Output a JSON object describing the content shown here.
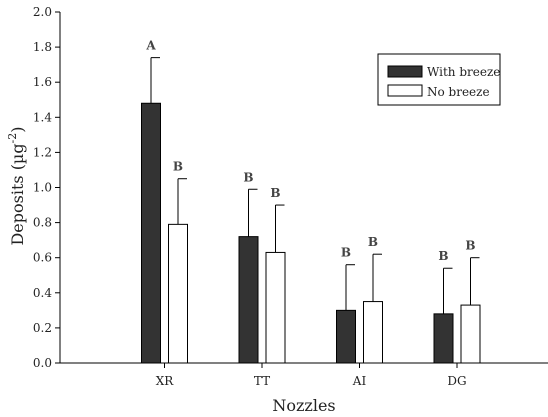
{
  "chart_data": {
    "type": "bar",
    "xlabel": "Nozzles",
    "ylabel": "Deposits (µg",
    "ylabel_sup": "-2",
    "ylabel_close": ")",
    "ylim": [
      0,
      2.0
    ],
    "yticks": [
      "0.0",
      "0.2",
      "0.4",
      "0.6",
      "0.8",
      "1.0",
      "1.2",
      "1.4",
      "1.6",
      "1.8",
      "2.0"
    ],
    "categories": [
      "XR",
      "TT",
      "AI",
      "DG"
    ],
    "error_bars": "upper",
    "legend_position": "top-right",
    "series": [
      {
        "name": "With breeze",
        "color": "#333333",
        "values": [
          1.48,
          0.72,
          0.3,
          0.28
        ],
        "errors": [
          0.26,
          0.27,
          0.26,
          0.26
        ],
        "letters": [
          "A",
          "B",
          "B",
          "B"
        ]
      },
      {
        "name": "No breeze",
        "color": "#ffffff",
        "values": [
          0.79,
          0.63,
          0.35,
          0.33
        ],
        "errors": [
          0.26,
          0.27,
          0.27,
          0.27
        ],
        "letters": [
          "B",
          "B",
          "B",
          "B"
        ]
      }
    ]
  }
}
